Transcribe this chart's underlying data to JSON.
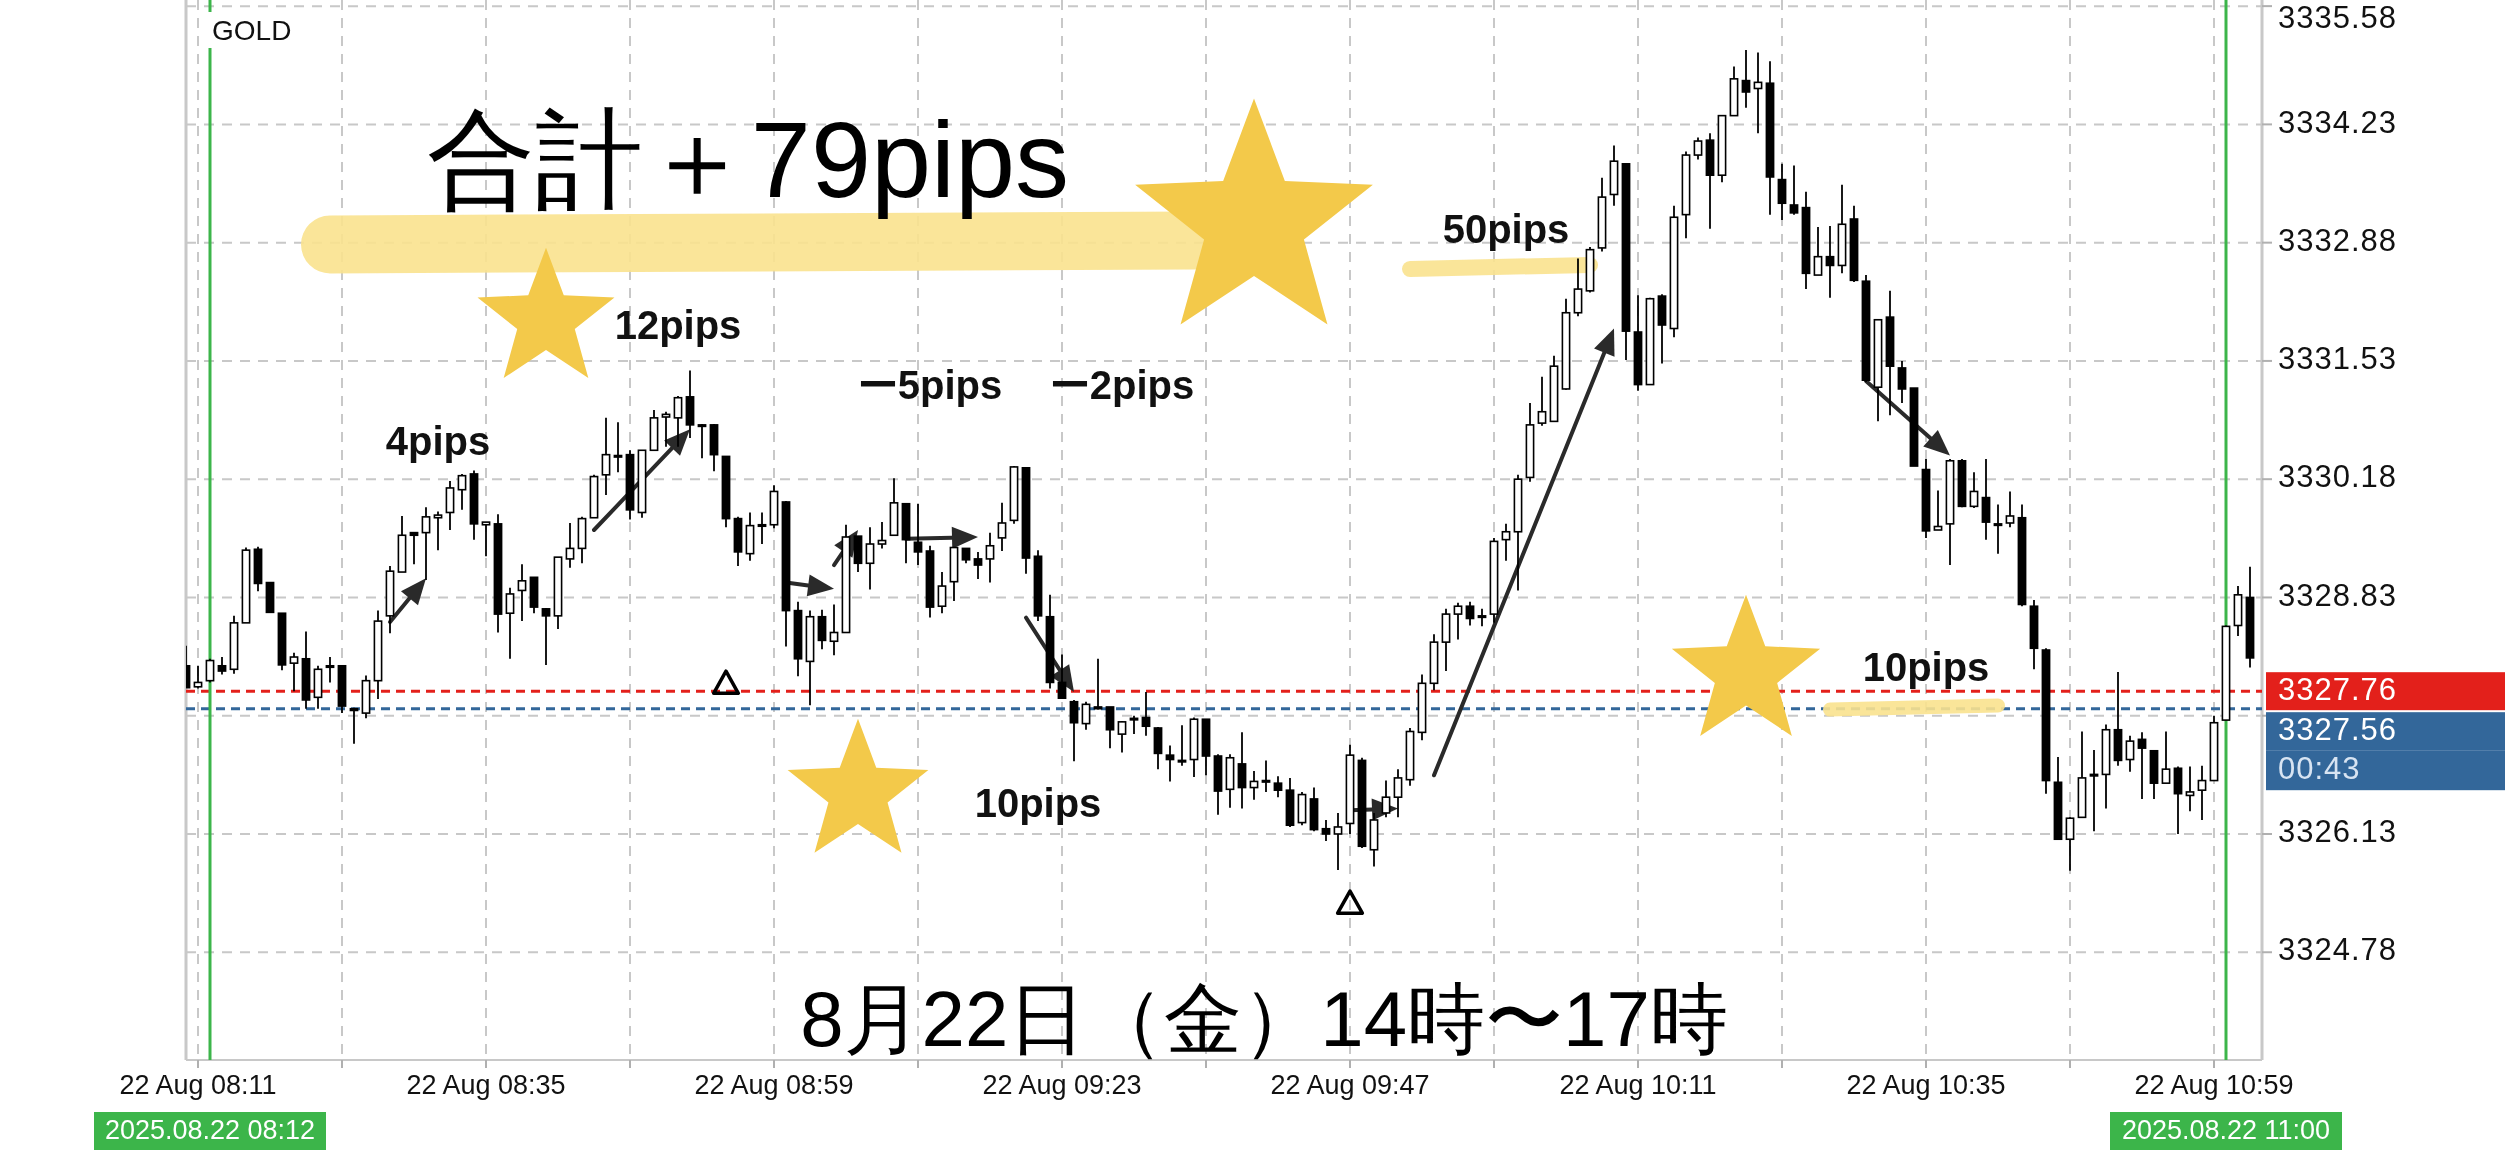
{
  "chart_data": {
    "type": "candlestick",
    "title": "合計＋79pips",
    "subtitle": "8月22日（金）14時〜17時",
    "color": "#000000",
    "annotations": [
      "GOLD",
      "00:43",
      "12pips",
      "4pips",
      "ー5pips",
      "ー2pips",
      "50pips",
      "10pips",
      "10pips"
    ],
    "x": [
      "2025-08-22T08:10",
      "2025-08-22T08:11",
      "2025-08-22T08:12",
      "2025-08-22T08:13",
      "2025-08-22T08:14",
      "2025-08-22T08:15",
      "2025-08-22T08:16",
      "2025-08-22T08:17",
      "2025-08-22T08:18",
      "2025-08-22T08:19",
      "2025-08-22T08:20",
      "2025-08-22T08:21",
      "2025-08-22T08:22",
      "2025-08-22T08:23",
      "2025-08-22T08:24",
      "2025-08-22T08:25",
      "2025-08-22T08:26",
      "2025-08-22T08:27",
      "2025-08-22T08:28",
      "2025-08-22T08:29",
      "2025-08-22T08:30",
      "2025-08-22T08:31",
      "2025-08-22T08:32",
      "2025-08-22T08:33",
      "2025-08-22T08:34",
      "2025-08-22T08:35",
      "2025-08-22T08:36",
      "2025-08-22T08:37",
      "2025-08-22T08:38",
      "2025-08-22T08:39",
      "2025-08-22T08:40",
      "2025-08-22T08:41",
      "2025-08-22T08:42",
      "2025-08-22T08:43",
      "2025-08-22T08:44",
      "2025-08-22T08:45",
      "2025-08-22T08:46",
      "2025-08-22T08:47",
      "2025-08-22T08:48",
      "2025-08-22T08:49",
      "2025-08-22T08:50",
      "2025-08-22T08:51",
      "2025-08-22T08:52",
      "2025-08-22T08:53",
      "2025-08-22T08:54",
      "2025-08-22T08:55",
      "2025-08-22T08:56",
      "2025-08-22T08:57",
      "2025-08-22T08:58",
      "2025-08-22T08:59",
      "2025-08-22T09:00",
      "2025-08-22T09:01",
      "2025-08-22T09:02",
      "2025-08-22T09:03",
      "2025-08-22T09:04",
      "2025-08-22T09:05",
      "2025-08-22T09:06",
      "2025-08-22T09:07",
      "2025-08-22T09:08",
      "2025-08-22T09:09",
      "2025-08-22T09:10",
      "2025-08-22T09:11",
      "2025-08-22T09:12",
      "2025-08-22T09:13",
      "2025-08-22T09:14",
      "2025-08-22T09:15",
      "2025-08-22T09:16",
      "2025-08-22T09:17",
      "2025-08-22T09:18",
      "2025-08-22T09:19",
      "2025-08-22T09:20",
      "2025-08-22T09:21",
      "2025-08-22T09:22",
      "2025-08-22T09:23",
      "2025-08-22T09:24",
      "2025-08-22T09:25",
      "2025-08-22T09:26",
      "2025-08-22T09:27",
      "2025-08-22T09:28",
      "2025-08-22T09:29",
      "2025-08-22T09:30",
      "2025-08-22T09:31",
      "2025-08-22T09:32",
      "2025-08-22T09:33",
      "2025-08-22T09:34",
      "2025-08-22T09:35",
      "2025-08-22T09:36",
      "2025-08-22T09:37",
      "2025-08-22T09:38",
      "2025-08-22T09:39",
      "2025-08-22T09:40",
      "2025-08-22T09:41",
      "2025-08-22T09:42",
      "2025-08-22T09:43",
      "2025-08-22T09:44",
      "2025-08-22T09:45",
      "2025-08-22T09:46",
      "2025-08-22T09:47",
      "2025-08-22T09:48",
      "2025-08-22T09:49",
      "2025-08-22T09:50",
      "2025-08-22T09:51",
      "2025-08-22T09:52",
      "2025-08-22T09:53",
      "2025-08-22T09:54",
      "2025-08-22T09:55",
      "2025-08-22T09:56",
      "2025-08-22T09:57",
      "2025-08-22T09:58",
      "2025-08-22T09:59",
      "2025-08-22T10:00",
      "2025-08-22T10:01",
      "2025-08-22T10:02",
      "2025-08-22T10:03",
      "2025-08-22T10:04",
      "2025-08-22T10:05",
      "2025-08-22T10:06",
      "2025-08-22T10:07",
      "2025-08-22T10:08",
      "2025-08-22T10:09",
      "2025-08-22T10:10",
      "2025-08-22T10:11",
      "2025-08-22T10:12",
      "2025-08-22T10:13",
      "2025-08-22T10:14",
      "2025-08-22T10:15",
      "2025-08-22T10:16",
      "2025-08-22T10:17",
      "2025-08-22T10:18",
      "2025-08-22T10:19",
      "2025-08-22T10:20",
      "2025-08-22T10:21",
      "2025-08-22T10:22",
      "2025-08-22T10:23",
      "2025-08-22T10:24",
      "2025-08-22T10:25",
      "2025-08-22T10:26",
      "2025-08-22T10:27",
      "2025-08-22T10:28",
      "2025-08-22T10:29",
      "2025-08-22T10:30",
      "2025-08-22T10:31",
      "2025-08-22T10:32",
      "2025-08-22T10:33",
      "2025-08-22T10:34",
      "2025-08-22T10:35",
      "2025-08-22T10:36",
      "2025-08-22T10:37",
      "2025-08-22T10:38",
      "2025-08-22T10:39",
      "2025-08-22T10:40",
      "2025-08-22T10:41",
      "2025-08-22T10:42",
      "2025-08-22T10:43",
      "2025-08-22T10:44",
      "2025-08-22T10:45",
      "2025-08-22T10:46",
      "2025-08-22T10:47",
      "2025-08-22T10:48",
      "2025-08-22T10:49",
      "2025-08-22T10:50",
      "2025-08-22T10:51",
      "2025-08-22T10:52",
      "2025-08-22T10:53",
      "2025-08-22T10:54",
      "2025-08-22T10:55",
      "2025-08-22T10:56",
      "2025-08-22T10:57",
      "2025-08-22T10:58",
      "2025-08-22T10:59",
      "2025-08-22T11:00",
      "2025-08-22T11:01",
      "2025-08-22T11:02"
    ],
    "ohlc": [
      [
        3328.05,
        3328.28,
        3327.8,
        3327.8
      ],
      [
        3327.81,
        3328.05,
        3327.79,
        3327.86
      ],
      [
        3327.88,
        3328.13,
        3327.86,
        3328.11
      ],
      [
        3328.05,
        3328.15,
        3327.95,
        3327.99
      ],
      [
        3328.01,
        3328.62,
        3327.96,
        3328.54
      ],
      [
        3328.54,
        3329.4,
        3328.54,
        3329.37
      ],
      [
        3329.38,
        3329.41,
        3328.9,
        3328.99
      ],
      [
        3329.0,
        3329.0,
        3328.66,
        3328.66
      ],
      [
        3328.65,
        3328.65,
        3328.0,
        3328.06
      ],
      [
        3328.08,
        3328.2,
        3327.76,
        3328.15
      ],
      [
        3328.13,
        3328.44,
        3327.56,
        3327.66
      ],
      [
        3327.69,
        3328.05,
        3327.56,
        3328.01
      ],
      [
        3328.05,
        3328.15,
        3327.86,
        3328.05
      ],
      [
        3328.05,
        3328.05,
        3327.51,
        3327.59
      ],
      [
        3327.56,
        3327.57,
        3327.16,
        3327.54
      ],
      [
        3327.51,
        3327.94,
        3327.45,
        3327.88
      ],
      [
        3327.88,
        3328.68,
        3327.67,
        3328.56
      ],
      [
        3328.62,
        3329.19,
        3328.42,
        3329.13
      ],
      [
        3329.12,
        3329.76,
        3329.12,
        3329.54
      ],
      [
        3329.57,
        3329.57,
        3329.21,
        3329.54
      ],
      [
        3329.57,
        3329.86,
        3329.03,
        3329.75
      ],
      [
        3329.74,
        3329.81,
        3329.37,
        3329.77
      ],
      [
        3329.8,
        3330.16,
        3329.6,
        3330.08
      ],
      [
        3330.06,
        3330.24,
        3329.83,
        3330.22
      ],
      [
        3330.24,
        3330.28,
        3329.49,
        3329.67
      ],
      [
        3329.66,
        3329.69,
        3329.3,
        3329.69
      ],
      [
        3329.67,
        3329.78,
        3328.43,
        3328.64
      ],
      [
        3328.65,
        3328.94,
        3328.13,
        3328.87
      ],
      [
        3328.91,
        3329.21,
        3328.56,
        3329.02
      ],
      [
        3329.06,
        3329.06,
        3328.65,
        3328.72
      ],
      [
        3328.7,
        3328.71,
        3328.06,
        3328.62
      ],
      [
        3328.62,
        3329.29,
        3328.47,
        3329.29
      ],
      [
        3329.27,
        3329.68,
        3329.17,
        3329.39
      ],
      [
        3329.39,
        3329.75,
        3329.22,
        3329.73
      ],
      [
        3329.74,
        3330.23,
        3329.74,
        3330.21
      ],
      [
        3330.23,
        3330.88,
        3330.0,
        3330.46
      ],
      [
        3330.45,
        3330.83,
        3330.26,
        3330.45
      ],
      [
        3330.46,
        3330.51,
        3329.72,
        3329.83
      ],
      [
        3329.8,
        3330.51,
        3329.74,
        3330.51
      ],
      [
        3330.51,
        3330.97,
        3330.51,
        3330.88
      ],
      [
        3330.89,
        3330.95,
        3330.55,
        3330.92
      ],
      [
        3330.88,
        3331.13,
        3330.55,
        3331.11
      ],
      [
        3331.12,
        3331.42,
        3330.65,
        3330.8
      ],
      [
        3330.8,
        3330.81,
        3330.42,
        3330.8
      ],
      [
        3330.8,
        3330.81,
        3330.27,
        3330.46
      ],
      [
        3330.44,
        3330.44,
        3329.63,
        3329.73
      ],
      [
        3329.73,
        3329.75,
        3329.19,
        3329.35
      ],
      [
        3329.33,
        3329.8,
        3329.25,
        3329.65
      ],
      [
        3329.66,
        3329.8,
        3329.44,
        3329.66
      ],
      [
        3329.66,
        3330.11,
        3329.62,
        3330.04
      ],
      [
        3329.92,
        3329.93,
        3328.27,
        3328.68
      ],
      [
        3328.68,
        3328.78,
        3327.93,
        3328.13
      ],
      [
        3328.1,
        3328.68,
        3327.6,
        3328.61
      ],
      [
        3328.61,
        3328.69,
        3328.24,
        3328.34
      ],
      [
        3328.33,
        3328.75,
        3328.17,
        3328.43
      ],
      [
        3328.43,
        3329.66,
        3328.43,
        3329.52
      ],
      [
        3329.53,
        3329.53,
        3329.12,
        3329.22
      ],
      [
        3329.22,
        3329.63,
        3328.92,
        3329.44
      ],
      [
        3329.44,
        3329.69,
        3329.39,
        3329.48
      ],
      [
        3329.54,
        3330.19,
        3329.54,
        3329.91
      ],
      [
        3329.9,
        3329.9,
        3329.22,
        3329.49
      ],
      [
        3329.46,
        3329.9,
        3329.2,
        3329.35
      ],
      [
        3329.36,
        3329.42,
        3328.6,
        3328.72
      ],
      [
        3328.73,
        3329.12,
        3328.65,
        3328.96
      ],
      [
        3329.01,
        3329.4,
        3328.79,
        3329.4
      ],
      [
        3329.39,
        3329.39,
        3329.22,
        3329.26
      ],
      [
        3329.27,
        3329.35,
        3329.04,
        3329.2
      ],
      [
        3329.27,
        3329.57,
        3329.0,
        3329.42
      ],
      [
        3329.51,
        3329.91,
        3329.36,
        3329.68
      ],
      [
        3329.71,
        3330.33,
        3329.67,
        3330.32
      ],
      [
        3330.31,
        3330.32,
        3329.1,
        3329.28
      ],
      [
        3329.3,
        3329.37,
        3328.56,
        3328.62
      ],
      [
        3328.61,
        3328.86,
        3327.79,
        3327.86
      ],
      [
        3327.86,
        3328.18,
        3327.68,
        3327.68
      ],
      [
        3327.64,
        3327.66,
        3326.96,
        3327.4
      ],
      [
        3327.39,
        3327.64,
        3327.32,
        3327.61
      ],
      [
        3327.58,
        3328.13,
        3327.55,
        3327.56
      ],
      [
        3327.58,
        3327.58,
        3327.11,
        3327.32
      ],
      [
        3327.27,
        3327.42,
        3327.06,
        3327.41
      ],
      [
        3327.45,
        3327.48,
        3327.27,
        3327.45
      ],
      [
        3327.46,
        3327.75,
        3327.25,
        3327.36
      ],
      [
        3327.34,
        3327.35,
        3326.87,
        3327.05
      ],
      [
        3327.03,
        3327.14,
        3326.73,
        3326.98
      ],
      [
        3326.97,
        3327.37,
        3326.91,
        3326.97
      ],
      [
        3326.98,
        3327.46,
        3326.78,
        3327.44
      ],
      [
        3327.44,
        3327.44,
        3326.8,
        3327.02
      ],
      [
        3327.02,
        3327.04,
        3326.35,
        3326.62
      ],
      [
        3326.64,
        3327.04,
        3326.43,
        3327.0
      ],
      [
        3326.93,
        3327.29,
        3326.42,
        3326.66
      ],
      [
        3326.66,
        3326.85,
        3326.52,
        3326.73
      ],
      [
        3326.74,
        3326.97,
        3326.61,
        3326.74
      ],
      [
        3326.71,
        3326.79,
        3326.55,
        3326.63
      ],
      [
        3326.63,
        3326.77,
        3326.21,
        3326.23
      ],
      [
        3326.26,
        3326.61,
        3326.23,
        3326.58
      ],
      [
        3326.53,
        3326.66,
        3326.16,
        3326.18
      ],
      [
        3326.19,
        3326.29,
        3326.05,
        3326.13
      ],
      [
        3326.13,
        3326.37,
        3325.72,
        3326.21
      ],
      [
        3326.25,
        3327.15,
        3326.13,
        3327.03
      ],
      [
        3326.97,
        3327.0,
        3325.97,
        3325.99
      ],
      [
        3325.95,
        3326.37,
        3325.76,
        3326.29
      ],
      [
        3326.37,
        3326.74,
        3326.32,
        3326.55
      ],
      [
        3326.55,
        3326.87,
        3326.32,
        3326.77
      ],
      [
        3326.75,
        3327.34,
        3326.68,
        3327.3
      ],
      [
        3327.29,
        3327.95,
        3327.2,
        3327.85
      ],
      [
        3327.85,
        3328.41,
        3327.77,
        3328.32
      ],
      [
        3328.32,
        3328.7,
        3327.99,
        3328.64
      ],
      [
        3328.64,
        3328.77,
        3328.35,
        3328.73
      ],
      [
        3328.73,
        3328.78,
        3328.51,
        3328.59
      ],
      [
        3328.62,
        3328.7,
        3328.5,
        3328.62
      ],
      [
        3328.64,
        3329.51,
        3328.54,
        3329.47
      ],
      [
        3329.49,
        3329.67,
        3329.25,
        3329.58
      ],
      [
        3329.58,
        3330.23,
        3328.91,
        3330.18
      ],
      [
        3330.2,
        3331.05,
        3330.15,
        3330.8
      ],
      [
        3330.82,
        3331.35,
        3330.79,
        3330.95
      ],
      [
        3330.84,
        3331.59,
        3330.84,
        3331.47
      ],
      [
        3331.21,
        3332.24,
        3331.2,
        3332.08
      ],
      [
        3332.08,
        3332.7,
        3332.04,
        3332.35
      ],
      [
        3332.33,
        3332.83,
        3332.31,
        3332.8
      ],
      [
        3332.82,
        3333.62,
        3332.78,
        3333.4
      ],
      [
        3333.43,
        3333.99,
        3333.3,
        3333.81
      ],
      [
        3333.78,
        3333.78,
        3331.54,
        3331.87
      ],
      [
        3331.86,
        3332.28,
        3331.19,
        3331.26
      ],
      [
        3331.26,
        3332.25,
        3331.26,
        3332.24
      ],
      [
        3332.27,
        3332.29,
        3331.5,
        3331.94
      ],
      [
        3331.9,
        3333.3,
        3331.8,
        3333.17
      ],
      [
        3333.2,
        3333.92,
        3332.93,
        3333.88
      ],
      [
        3333.88,
        3334.08,
        3333.83,
        3334.04
      ],
      [
        3334.05,
        3334.13,
        3333.04,
        3333.65
      ],
      [
        3333.65,
        3334.33,
        3333.57,
        3334.33
      ],
      [
        3334.33,
        3334.89,
        3334.33,
        3334.75
      ],
      [
        3334.73,
        3335.08,
        3334.42,
        3334.6
      ],
      [
        3334.64,
        3335.05,
        3334.13,
        3334.71
      ],
      [
        3334.7,
        3334.95,
        3333.2,
        3333.63
      ],
      [
        3333.6,
        3333.78,
        3333.14,
        3333.33
      ],
      [
        3333.31,
        3333.76,
        3333.2,
        3333.22
      ],
      [
        3333.28,
        3333.46,
        3332.35,
        3332.53
      ],
      [
        3332.51,
        3333.06,
        3332.51,
        3332.72
      ],
      [
        3332.72,
        3333.07,
        3332.25,
        3332.62
      ],
      [
        3332.62,
        3333.54,
        3332.53,
        3333.09
      ],
      [
        3333.15,
        3333.3,
        3332.43,
        3332.45
      ],
      [
        3332.44,
        3332.51,
        3331.29,
        3331.31
      ],
      [
        3331.23,
        3332.0,
        3330.84,
        3332.0
      ],
      [
        3332.03,
        3332.33,
        3330.91,
        3331.47
      ],
      [
        3331.45,
        3331.53,
        3331.05,
        3331.21
      ],
      [
        3331.22,
        3331.22,
        3330.33,
        3330.33
      ],
      [
        3330.29,
        3330.41,
        3329.51,
        3329.59
      ],
      [
        3329.6,
        3330.05,
        3329.6,
        3329.64
      ],
      [
        3329.67,
        3330.41,
        3329.2,
        3330.39
      ],
      [
        3330.39,
        3330.41,
        3329.86,
        3329.87
      ],
      [
        3329.87,
        3330.26,
        3329.85,
        3330.04
      ],
      [
        3329.97,
        3330.41,
        3329.49,
        3329.69
      ],
      [
        3329.67,
        3329.89,
        3329.33,
        3329.67
      ],
      [
        3329.68,
        3330.04,
        3329.63,
        3329.76
      ],
      [
        3329.74,
        3329.89,
        3328.73,
        3328.75
      ],
      [
        3328.73,
        3328.8,
        3328.01,
        3328.25
      ],
      [
        3328.23,
        3328.25,
        3326.59,
        3326.74
      ],
      [
        3326.72,
        3327.01,
        3326.07,
        3326.07
      ],
      [
        3326.07,
        3326.32,
        3325.71,
        3326.31
      ],
      [
        3326.32,
        3327.3,
        3326.32,
        3326.77
      ],
      [
        3326.81,
        3327.09,
        3326.16,
        3326.81
      ],
      [
        3326.81,
        3327.38,
        3326.42,
        3327.32
      ],
      [
        3327.32,
        3327.98,
        3326.91,
        3326.97
      ],
      [
        3326.98,
        3327.25,
        3326.84,
        3327.19
      ],
      [
        3327.21,
        3327.29,
        3326.53,
        3327.11
      ],
      [
        3327.08,
        3327.09,
        3326.53,
        3326.71
      ],
      [
        3326.71,
        3327.3,
        3326.71,
        3326.87
      ],
      [
        3326.88,
        3326.9,
        3326.13,
        3326.59
      ],
      [
        3326.57,
        3326.9,
        3326.39,
        3326.61
      ],
      [
        3326.63,
        3326.91,
        3326.29,
        3326.74
      ],
      [
        3326.74,
        3327.48,
        3326.74,
        3327.4
      ],
      [
        3327.43,
        3328.51,
        3327.43,
        3328.5
      ],
      [
        3328.51,
        3328.96,
        3328.39,
        3328.86
      ],
      [
        3328.83,
        3329.18,
        3328.03,
        3328.14
      ]
    ],
    "series": [
      {
        "type": "scatter",
        "marker": "triangle",
        "color": "#000000",
        "x": [
          "2025-08-22T08:55",
          "2025-08-22T09:47"
        ],
        "values": [
          3327.84,
          3325.33
        ]
      }
    ],
    "xlim": [
      "2025-08-22T08:10",
      "2025-08-22T11:03"
    ],
    "ylim": [
      3323.55,
      3335.65
    ],
    "xticks": [
      {
        "value": "2025-08-22T08:11",
        "label": "22 Aug 08:11"
      },
      {
        "value": "2025-08-22T08:23",
        "label": null
      },
      {
        "value": "2025-08-22T08:35",
        "label": "22 Aug 08:35"
      },
      {
        "value": "2025-08-22T08:47",
        "label": null
      },
      {
        "value": "2025-08-22T08:59",
        "label": "22 Aug 08:59"
      },
      {
        "value": "2025-08-22T09:11",
        "label": null
      },
      {
        "value": "2025-08-22T09:23",
        "label": "22 Aug 09:23"
      },
      {
        "value": "2025-08-22T09:35",
        "label": null
      },
      {
        "value": "2025-08-22T09:47",
        "label": "22 Aug 09:47"
      },
      {
        "value": "2025-08-22T09:59",
        "label": null
      },
      {
        "value": "2025-08-22T10:11",
        "label": "22 Aug 10:11"
      },
      {
        "value": "2025-08-22T10:23",
        "label": null
      },
      {
        "value": "2025-08-22T10:35",
        "label": "22 Aug 10:35"
      },
      {
        "value": "2025-08-22T10:47",
        "label": null
      },
      {
        "value": "2025-08-22T10:59",
        "label": "22 Aug 10:59"
      }
    ],
    "yticks": [
      3324.78,
      3326.13,
      {
        "value": 3327.48,
        "label": null
      },
      3328.83,
      3330.18,
      3331.53,
      3332.88,
      3334.23,
      3335.58
    ],
    "grid": true,
    "ref_lines": [
      {
        "axis": "y",
        "value": 3327.76,
        "label": "3327.76",
        "color": "#e3201b",
        "line_style": "dashed"
      },
      {
        "axis": "y",
        "value": 3327.56,
        "label": "3327.56",
        "color": "#33679a",
        "line_style": "dashed"
      },
      {
        "axis": "x",
        "value": "2025-08-22T08:12",
        "label": "2025.08.22 08:12",
        "color": "#3cb54a",
        "line_style": "solid"
      },
      {
        "axis": "x",
        "value": "2025-08-22T11:00",
        "label": "2025.08.22 11:00",
        "color": "#3cb54a",
        "line_style": "solid"
      }
    ]
  }
}
